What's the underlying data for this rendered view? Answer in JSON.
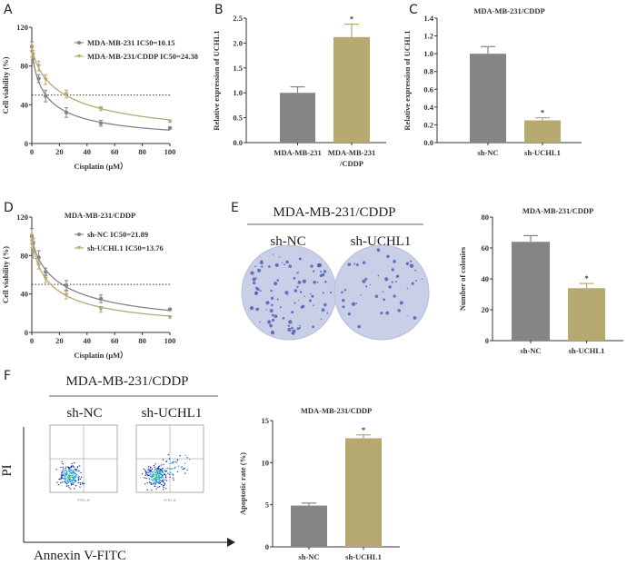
{
  "panels": {
    "A": "A",
    "B": "B",
    "C": "C",
    "D": "D",
    "E": "E",
    "F": "F"
  },
  "colors": {
    "gray": "#858585",
    "tan": "#b5a96f",
    "axis": "#333333",
    "plate": "#c9cfe6",
    "colony": "#4a59b8"
  },
  "panel_e": {
    "title": "MDA-MB-231/CDDP",
    "groups": [
      "sh-NC",
      "sh-UCHL1"
    ]
  },
  "panel_f": {
    "title": "MDA-MB-231/CDDP",
    "groups": [
      "sh-NC",
      "sh-UCHL1"
    ],
    "y_axis": "PI",
    "x_axis": "Annexin V-FITC",
    "flow_x_label": "FITC-H"
  },
  "chart_data": [
    {
      "id": "A",
      "type": "line",
      "title": "",
      "xlabel": "Cisplatin (μM）",
      "ylabel": "Cell viability (%)",
      "xlim": [
        0,
        100
      ],
      "ylim": [
        0,
        120
      ],
      "xticks": [
        0,
        20,
        40,
        60,
        80,
        100
      ],
      "yticks": [
        0,
        40,
        80,
        120
      ],
      "reference_line": 50,
      "legend": "top-right",
      "x": [
        0,
        1,
        5,
        10,
        25,
        50,
        100
      ],
      "series": [
        {
          "name": "MDA-MB-231  IC50=10.15",
          "ic50": 10.15,
          "color": "gray",
          "marker": "circle",
          "values": [
            100,
            88,
            67,
            49,
            32,
            21,
            16
          ],
          "errors": [
            5,
            5,
            4,
            6,
            5,
            3,
            1
          ]
        },
        {
          "name": "MDA-MB-231/CDDP  IC50=24.38",
          "ic50": 24.38,
          "color": "tan",
          "marker": "triangle-down",
          "values": [
            95,
            92,
            80,
            66,
            51,
            36,
            23
          ],
          "errors": [
            6,
            4,
            5,
            5,
            4,
            2,
            1
          ]
        }
      ]
    },
    {
      "id": "B",
      "type": "bar",
      "title": "",
      "ylabel": "Relative expression of UCHL1",
      "ylim": [
        0,
        2.5
      ],
      "yticks": [
        "0.0",
        "0.5",
        "1.0",
        "1.5",
        "2.0",
        "2.5"
      ],
      "categories": [
        [
          "MDA-MB-231"
        ],
        [
          "MDA-MB-231",
          "/CDDP"
        ]
      ],
      "values": [
        1.0,
        2.12
      ],
      "errors": [
        0.12,
        0.26
      ],
      "significance": [
        "",
        "*"
      ],
      "colors": [
        "gray",
        "tan"
      ]
    },
    {
      "id": "C",
      "type": "bar",
      "title": "MDA-MB-231/CDDP",
      "ylabel": "Relative expression of UCHL1",
      "ylim": [
        0,
        1.4
      ],
      "yticks": [
        "0.0",
        "0.2",
        "0.4",
        "0.6",
        "0.8",
        "1.0",
        "1.2",
        "1.4"
      ],
      "categories": [
        [
          "sh-NC"
        ],
        [
          "sh-UCHL1"
        ]
      ],
      "values": [
        1.0,
        0.25
      ],
      "errors": [
        0.08,
        0.03
      ],
      "significance": [
        "",
        "*"
      ],
      "colors": [
        "gray",
        "tan"
      ]
    },
    {
      "id": "D",
      "type": "line",
      "title": "MDA-MB-231/CDDP",
      "xlabel": "Cisplatin (μM）",
      "ylabel": "Cell viability (%)",
      "xlim": [
        0,
        100
      ],
      "ylim": [
        0,
        120
      ],
      "xticks": [
        0,
        20,
        40,
        60,
        80,
        100
      ],
      "yticks": [
        0,
        40,
        80,
        120
      ],
      "reference_line": 50,
      "legend": "top-right",
      "x": [
        0,
        1,
        5,
        10,
        25,
        50,
        100
      ],
      "series": [
        {
          "name": "sh-NC  IC50=21.89",
          "ic50": 21.89,
          "color": "gray",
          "marker": "circle",
          "values": [
            100,
            93,
            78,
            63,
            49,
            35,
            24
          ],
          "errors": [
            8,
            5,
            7,
            4,
            5,
            4,
            1
          ]
        },
        {
          "name": "sh-UCHL1  IC50=13.76",
          "ic50": 13.76,
          "color": "tan",
          "marker": "triangle-down",
          "values": [
            95,
            86,
            70,
            56,
            39,
            24,
            16
          ],
          "errors": [
            7,
            9,
            4,
            4,
            4,
            3,
            1
          ]
        }
      ]
    },
    {
      "id": "E",
      "type": "bar",
      "title": "MDA-MB-231/CDDP",
      "ylabel": "Number of colonies",
      "ylim": [
        0,
        80
      ],
      "yticks": [
        "0",
        "20",
        "40",
        "60",
        "80"
      ],
      "categories": [
        [
          "sh-NC"
        ],
        [
          "sh-UCHL1"
        ]
      ],
      "values": [
        64,
        34
      ],
      "errors": [
        4,
        3
      ],
      "significance": [
        "",
        "*"
      ],
      "colors": [
        "gray",
        "tan"
      ]
    },
    {
      "id": "F",
      "type": "bar",
      "title": "MDA-MB-231/CDDP",
      "ylabel": "Apoptotic rate (%)",
      "ylim": [
        0,
        15
      ],
      "yticks": [
        "0",
        "5",
        "10",
        "15"
      ],
      "categories": [
        [
          "sh-NC"
        ],
        [
          "sh-UCHL1"
        ]
      ],
      "values": [
        4.9,
        12.9
      ],
      "errors": [
        0.3,
        0.4
      ],
      "significance": [
        "",
        "*"
      ],
      "colors": [
        "gray",
        "tan"
      ]
    }
  ]
}
